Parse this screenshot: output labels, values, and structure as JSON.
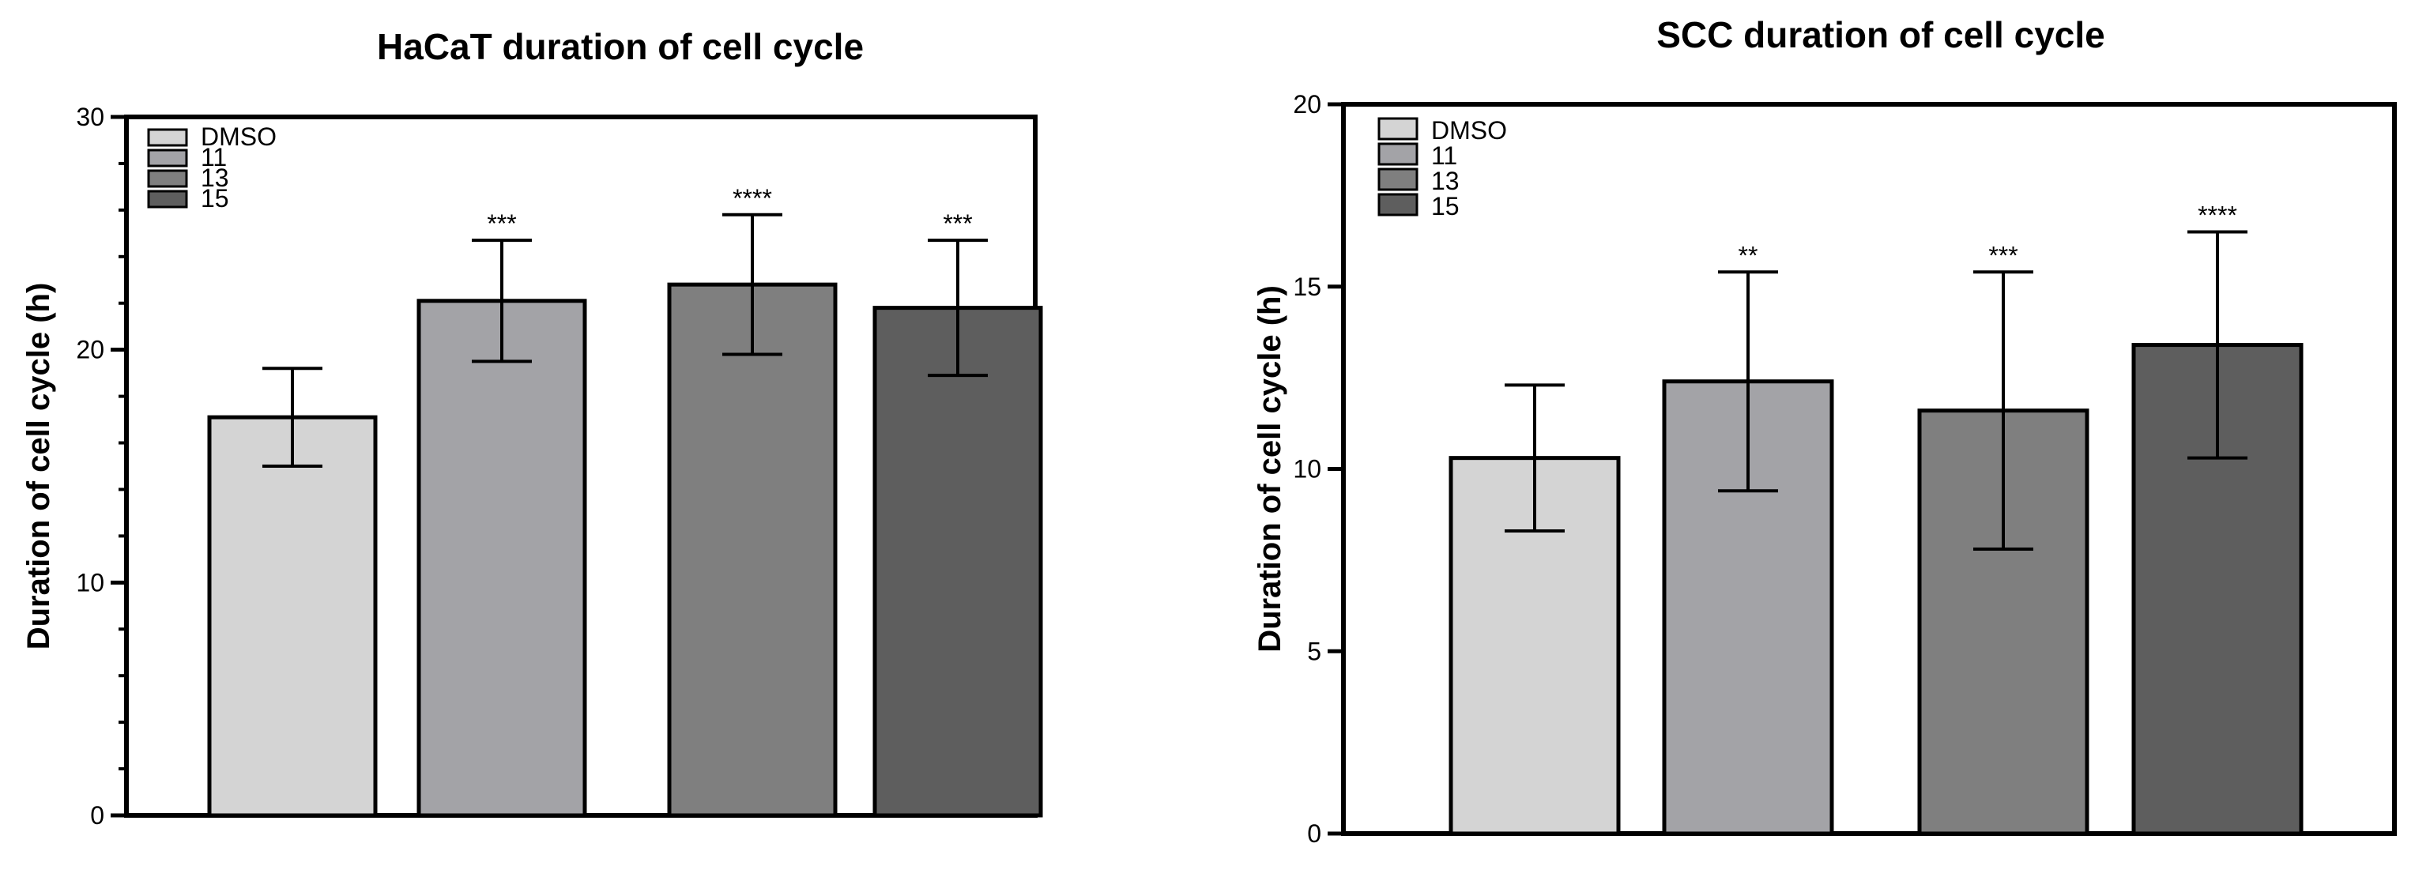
{
  "chart_data": [
    {
      "type": "bar",
      "title": "HaCaT duration of cell cycle",
      "xlabel": "",
      "ylabel": "Duration of cell cycle (h)",
      "ylim": [
        0,
        30
      ],
      "yticks": [
        0,
        10,
        20,
        30
      ],
      "minor_ticks_per_interval": 5,
      "categories": [
        "DMSO",
        "11",
        "13",
        "15"
      ],
      "values": [
        17.1,
        22.1,
        22.8,
        21.8
      ],
      "errors": [
        2.1,
        2.6,
        3.0,
        2.9
      ],
      "significance": [
        "",
        "***",
        "****",
        "***"
      ],
      "colors": [
        "#d4d4d4",
        "#a3a3a7",
        "#7f7f7f",
        "#5e5e5e"
      ],
      "legend": {
        "entries": [
          "DMSO",
          "11",
          "13",
          "15"
        ],
        "position": "top-left"
      }
    },
    {
      "type": "bar",
      "title": "SCC duration of cell cycle",
      "xlabel": "",
      "ylabel": "Duration of cell cycle (h)",
      "ylim": [
        0,
        20
      ],
      "yticks": [
        0,
        5,
        10,
        15,
        20
      ],
      "minor_ticks_per_interval": 1,
      "categories": [
        "DMSO",
        "11",
        "13",
        "15"
      ],
      "values": [
        10.3,
        12.4,
        11.6,
        13.4
      ],
      "errors": [
        2.0,
        3.0,
        3.8,
        3.1
      ],
      "significance": [
        "",
        "**",
        "***",
        "****"
      ],
      "colors": [
        "#d4d4d4",
        "#a3a3a7",
        "#7f7f7f",
        "#5e5e5e"
      ],
      "legend": {
        "entries": [
          "DMSO",
          "11",
          "13",
          "15"
        ],
        "position": "top-left"
      }
    }
  ]
}
